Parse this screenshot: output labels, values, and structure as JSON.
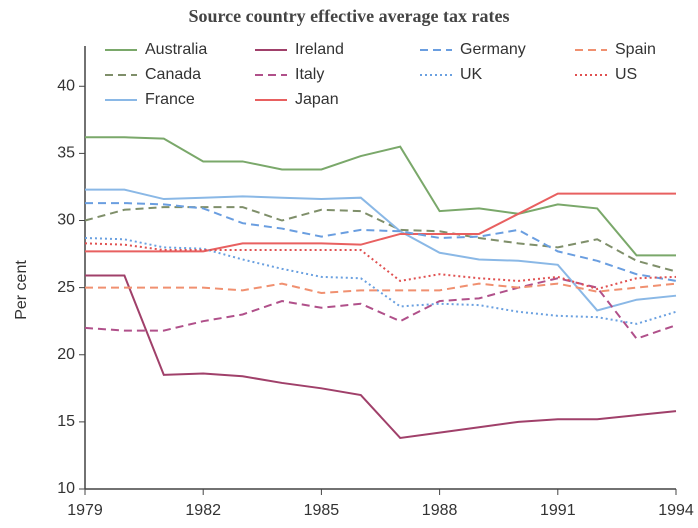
{
  "chart_data": {
    "type": "line",
    "title": "Source country effective average tax rates",
    "y_label": "Per cent",
    "x": [
      1979,
      1980,
      1981,
      1982,
      1983,
      1984,
      1985,
      1986,
      1987,
      1988,
      1989,
      1990,
      1991,
      1992,
      1993,
      1994
    ],
    "xlim": [
      1979,
      1994
    ],
    "xticks": [
      1979,
      1982,
      1985,
      1988,
      1991,
      1994
    ],
    "ylim": [
      10,
      43
    ],
    "yticks": [
      10,
      15,
      20,
      25,
      30,
      35,
      40
    ],
    "series": [
      {
        "name": "Australia",
        "color": "#7aa86a",
        "style": "solid",
        "values": [
          36.2,
          36.2,
          36.1,
          34.4,
          34.4,
          33.8,
          33.8,
          34.8,
          35.5,
          30.7,
          30.9,
          30.5,
          31.2,
          30.9,
          27.4,
          27.4
        ]
      },
      {
        "name": "Canada",
        "color": "#7f8f6a",
        "style": "dashed",
        "values": [
          30,
          30.8,
          31,
          31,
          31,
          30,
          30.8,
          30.7,
          29.3,
          29.2,
          28.7,
          28.3,
          28,
          28.6,
          27,
          26.2
        ]
      },
      {
        "name": "France",
        "color": "#8ab8e6",
        "style": "solid",
        "values": [
          32.3,
          32.3,
          31.6,
          31.7,
          31.8,
          31.7,
          31.6,
          31.7,
          29.2,
          27.6,
          27.1,
          27,
          26.7,
          23.3,
          24.1,
          24.4
        ]
      },
      {
        "name": "Ireland",
        "color": "#a0406a",
        "style": "solid",
        "values": [
          25.9,
          25.9,
          18.5,
          18.6,
          18.4,
          17.9,
          17.5,
          17,
          13.8,
          14.2,
          14.6,
          15,
          15.2,
          15.2,
          15.5,
          15.8
        ]
      },
      {
        "name": "Italy",
        "color": "#b0508a",
        "style": "dashed",
        "values": [
          22,
          21.8,
          21.8,
          22.5,
          23,
          24,
          23.5,
          23.8,
          22.5,
          24,
          24.2,
          25,
          25.7,
          25,
          21.2,
          22.2
        ]
      },
      {
        "name": "Japan",
        "color": "#e86060",
        "style": "solid",
        "values": [
          27.7,
          27.7,
          27.7,
          27.7,
          28.3,
          28.3,
          28.3,
          28.2,
          29,
          29,
          29,
          30.5,
          32,
          32,
          32,
          32
        ]
      },
      {
        "name": "Germany",
        "color": "#6a9ee0",
        "style": "dashed",
        "values": [
          31.3,
          31.3,
          31.2,
          30.9,
          29.8,
          29.4,
          28.8,
          29.3,
          29.2,
          28.7,
          28.8,
          29.3,
          27.7,
          27,
          26,
          25.5
        ]
      },
      {
        "name": "UK",
        "color": "#6aa0e0",
        "style": "dotted",
        "values": [
          28.7,
          28.6,
          28,
          27.9,
          27.1,
          26.4,
          25.8,
          25.7,
          23.6,
          23.8,
          23.7,
          23.2,
          22.9,
          22.8,
          22.3,
          23.2
        ]
      },
      {
        "name": "Spain",
        "color": "#f09070",
        "style": "dashed",
        "values": [
          25,
          25,
          25,
          25,
          24.8,
          25.3,
          24.6,
          24.8,
          24.8,
          24.8,
          25.3,
          25,
          25.3,
          24.7,
          25,
          25.3
        ]
      },
      {
        "name": "US",
        "color": "#e05050",
        "style": "dotted",
        "values": [
          28.3,
          28.2,
          27.8,
          27.8,
          27.8,
          27.8,
          27.8,
          27.8,
          25.5,
          26,
          25.7,
          25.5,
          25.8,
          24.9,
          25.7,
          25.8
        ]
      }
    ]
  }
}
